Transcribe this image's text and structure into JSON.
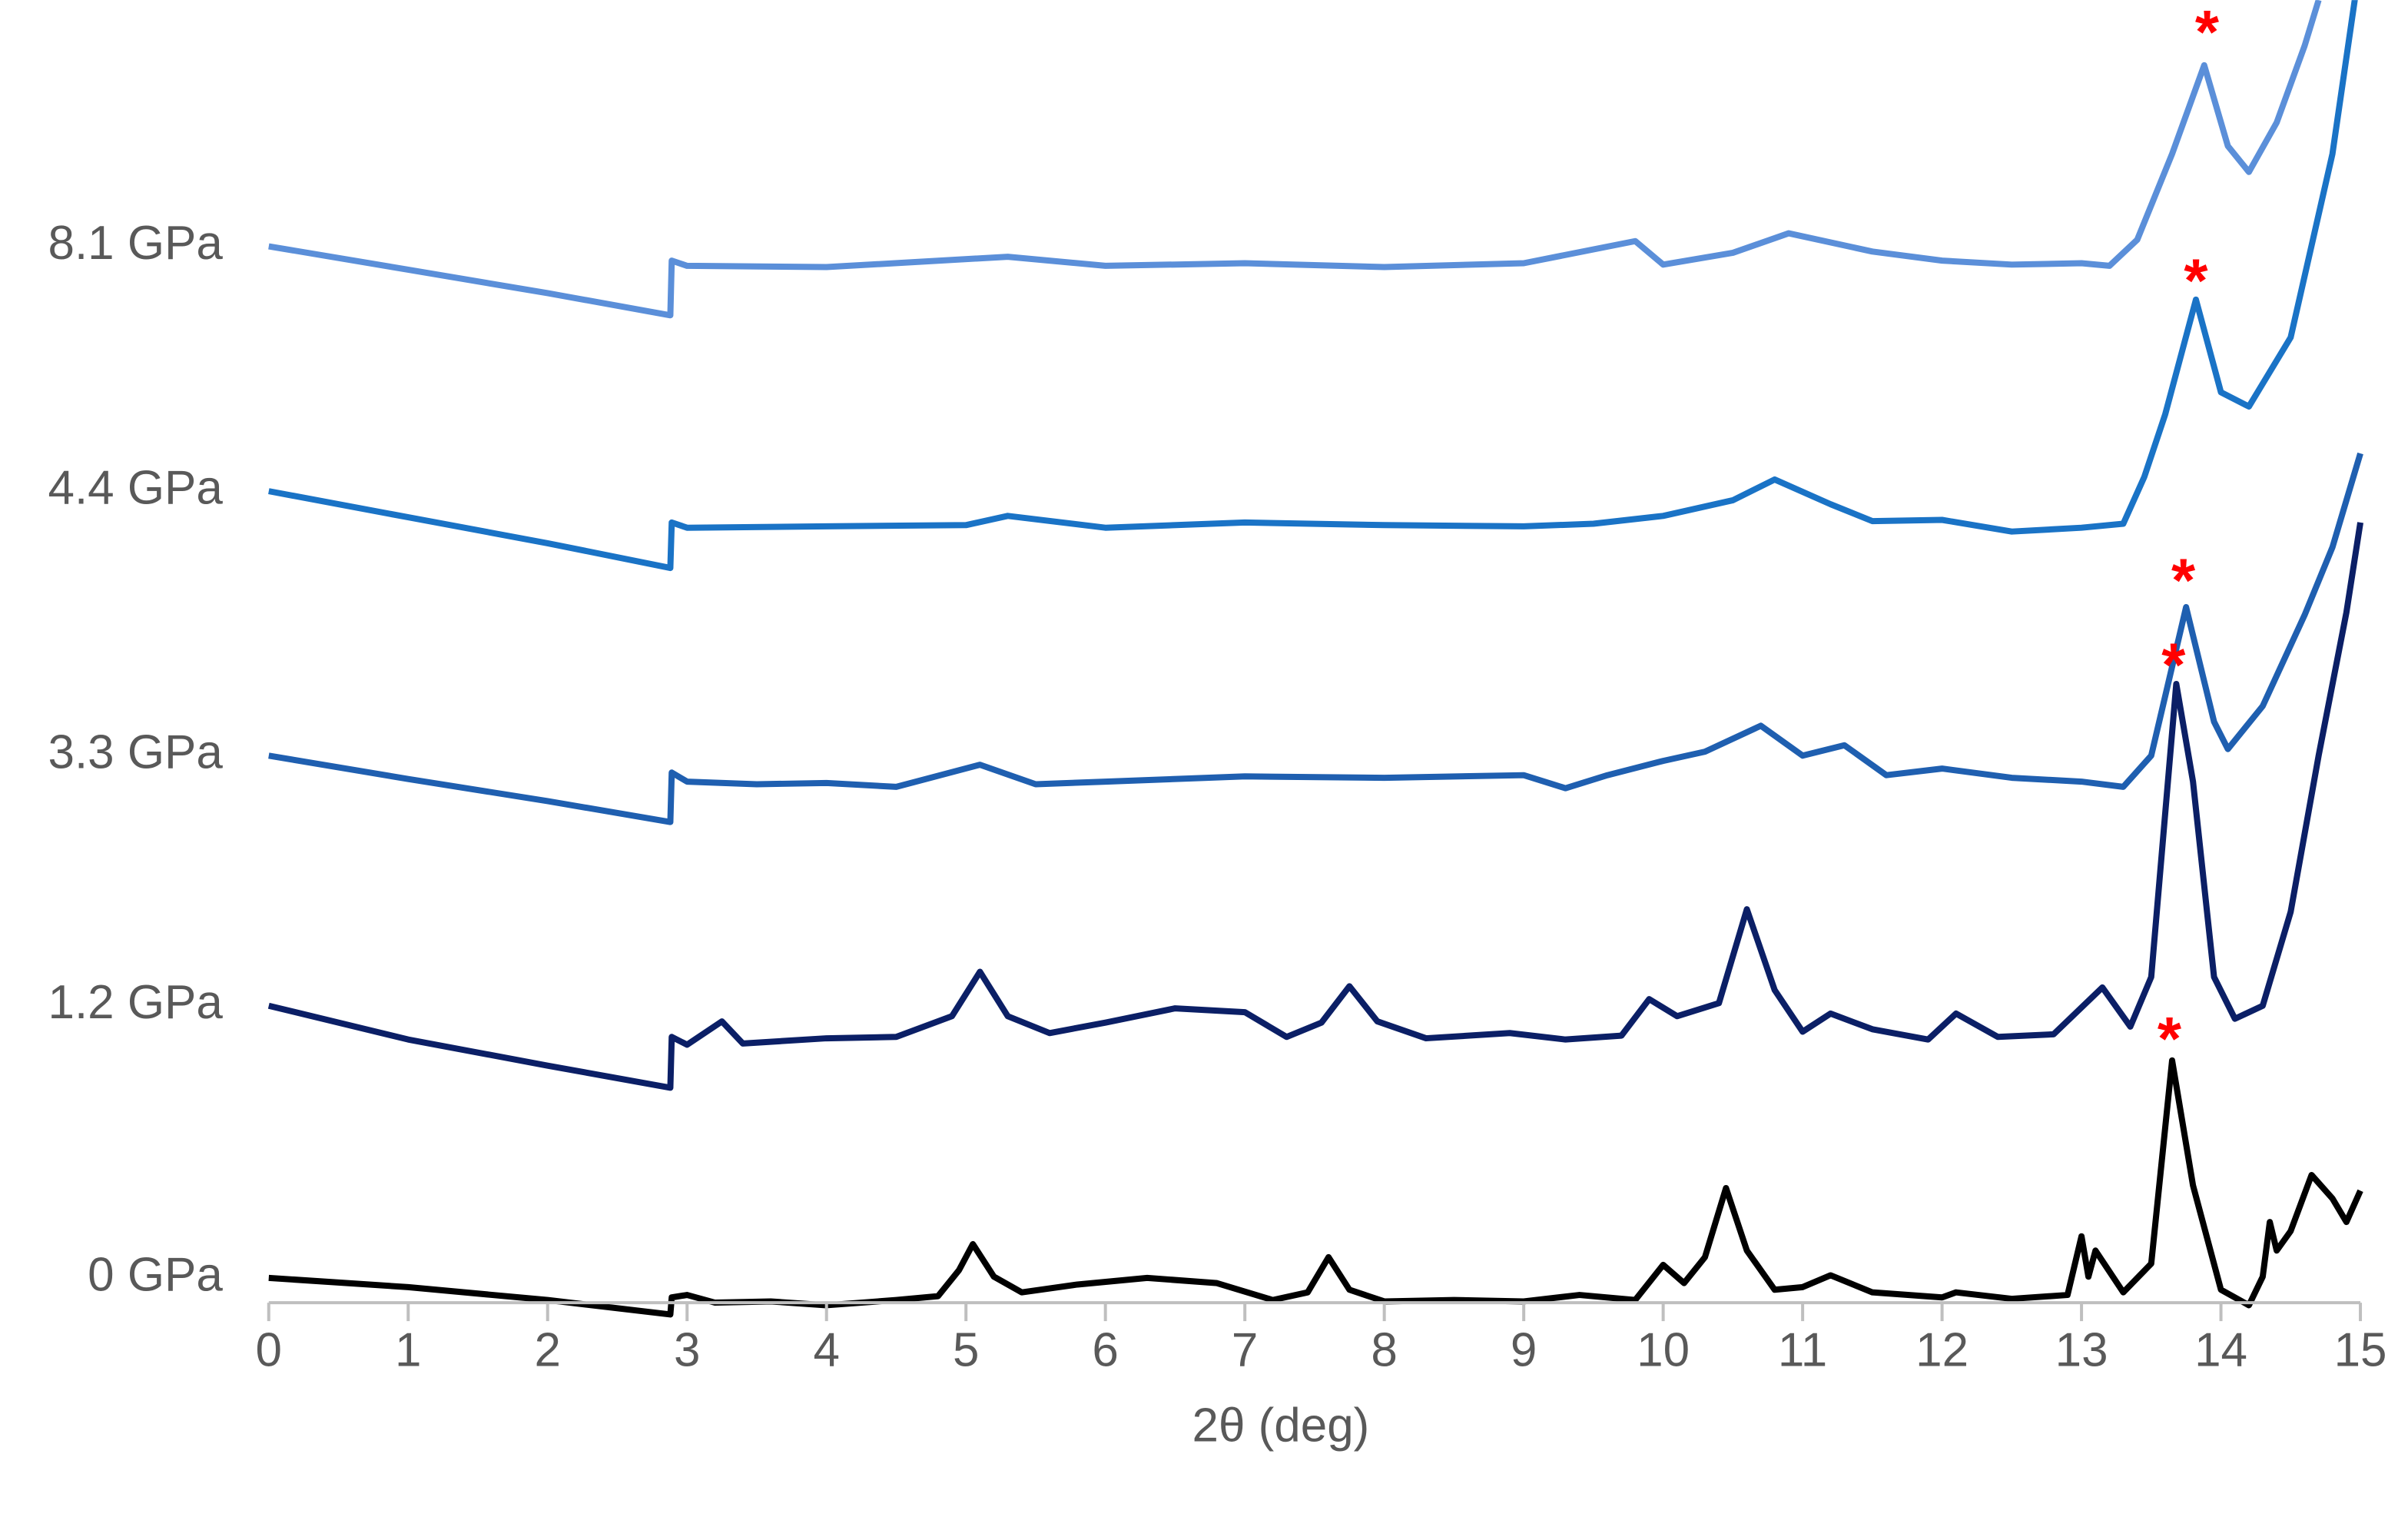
{
  "chart_data": {
    "type": "line",
    "x_label": "2θ (deg)",
    "xlim": [
      0,
      15
    ],
    "xticks": [
      0,
      1,
      2,
      3,
      4,
      5,
      6,
      7,
      8,
      9,
      10,
      11,
      12,
      13,
      14,
      15
    ],
    "ylim": [
      -2,
      100
    ],
    "grid": false,
    "series": [
      {
        "name": "0 GPa",
        "color": "#000000",
        "x": [
          0,
          1,
          2,
          2.88,
          2.89,
          3.0,
          3.2,
          3.6,
          4.0,
          4.5,
          4.8,
          4.95,
          5.05,
          5.2,
          5.4,
          5.8,
          6.3,
          6.8,
          7.2,
          7.45,
          7.6,
          7.75,
          8.0,
          8.5,
          9.0,
          9.4,
          9.8,
          10.0,
          10.15,
          10.3,
          10.45,
          10.6,
          10.8,
          11.0,
          11.2,
          11.5,
          12.0,
          12.1,
          12.5,
          12.9,
          13.0,
          13.05,
          13.1,
          13.3,
          13.5,
          13.65,
          13.8,
          14.0,
          14.2,
          14.3,
          14.35,
          14.4,
          14.5,
          14.65,
          14.8,
          14.9,
          15
        ],
        "values": [
          1.9,
          1.2,
          0.2,
          -0.9,
          0.4,
          0.6,
          0.0,
          0.1,
          -0.2,
          0.2,
          0.5,
          2.5,
          4.5,
          2.0,
          0.8,
          1.4,
          1.9,
          1.5,
          0.2,
          0.8,
          3.5,
          1.0,
          0.1,
          0.2,
          0.1,
          0.6,
          0.2,
          2.9,
          1.5,
          3.5,
          8.8,
          4.0,
          1.0,
          1.2,
          2.1,
          0.8,
          0.4,
          0.8,
          0.3,
          0.6,
          5.1,
          2.0,
          4.0,
          0.8,
          3.0,
          18.6,
          9.0,
          1.0,
          -0.2,
          2.0,
          6.2,
          4.0,
          5.5,
          9.8,
          8.0,
          6.2,
          8.6
        ]
      },
      {
        "name": "1.2 GPa",
        "color": "#0b1f66",
        "x": [
          0,
          1,
          2,
          2.88,
          2.89,
          3.0,
          3.25,
          3.4,
          4.0,
          4.5,
          4.9,
          5.1,
          5.3,
          5.6,
          6.0,
          6.5,
          7.0,
          7.3,
          7.55,
          7.75,
          7.95,
          8.3,
          8.9,
          9.3,
          9.7,
          9.9,
          10.1,
          10.4,
          10.6,
          10.8,
          11.0,
          11.2,
          11.5,
          11.9,
          12.1,
          12.4,
          12.8,
          13.15,
          13.35,
          13.5,
          13.68,
          13.8,
          13.95,
          14.1,
          14.3,
          14.5,
          14.7,
          14.9,
          15
        ],
        "values": [
          22.8,
          20.2,
          18.2,
          16.5,
          20.4,
          19.8,
          21.6,
          19.9,
          20.3,
          20.4,
          22.0,
          25.4,
          22.0,
          20.7,
          21.5,
          22.6,
          22.3,
          20.4,
          21.5,
          24.3,
          21.6,
          20.3,
          20.7,
          20.2,
          20.5,
          23.3,
          22.0,
          23.0,
          30.2,
          24.0,
          20.8,
          22.2,
          21.0,
          20.2,
          22.2,
          20.4,
          20.6,
          24.2,
          21.2,
          25.0,
          47.5,
          40.0,
          25.0,
          21.8,
          22.8,
          30.0,
          42.0,
          53.0,
          59.9
        ]
      },
      {
        "name": "3.3 GPa",
        "color": "#1f5fb0",
        "x": [
          0,
          1,
          2,
          2.88,
          2.89,
          3.0,
          3.5,
          4.0,
          4.5,
          5.1,
          5.5,
          6.0,
          7.0,
          8.0,
          9.0,
          9.3,
          9.6,
          10.0,
          10.3,
          10.7,
          11.0,
          11.3,
          11.6,
          12.0,
          12.5,
          13.0,
          13.3,
          13.5,
          13.75,
          13.95,
          14.05,
          14.3,
          14.6,
          14.8,
          15
        ],
        "values": [
          42.0,
          40.2,
          38.5,
          36.9,
          40.7,
          40.0,
          39.8,
          39.9,
          39.6,
          41.3,
          39.8,
          40.0,
          40.4,
          40.3,
          40.5,
          39.5,
          40.5,
          41.6,
          42.3,
          44.3,
          42.0,
          42.8,
          40.5,
          41.0,
          40.3,
          40.0,
          39.6,
          42.0,
          53.4,
          44.6,
          42.5,
          45.8,
          52.8,
          58.0,
          65.2
        ]
      },
      {
        "name": "4.4 GPa",
        "color": "#1a73c6",
        "x": [
          0,
          1,
          2,
          2.88,
          2.89,
          3.0,
          4.0,
          5.0,
          5.3,
          6.0,
          7.0,
          8.0,
          9.0,
          9.5,
          10.0,
          10.5,
          10.8,
          11.2,
          11.5,
          12.0,
          12.5,
          13.0,
          13.3,
          13.45,
          13.6,
          13.82,
          14.0,
          14.2,
          14.5,
          14.8,
          15
        ],
        "values": [
          62.3,
          60.3,
          58.3,
          56.4,
          59.9,
          59.5,
          59.6,
          59.7,
          60.4,
          59.5,
          59.9,
          59.7,
          59.6,
          59.8,
          60.4,
          61.6,
          63.2,
          61.3,
          60.0,
          60.1,
          59.2,
          59.5,
          59.8,
          63.4,
          68.2,
          77.0,
          69.9,
          68.8,
          74.1,
          88.2,
          103.0
        ]
      },
      {
        "name": "8.1 GPa",
        "color": "#5b8fd9",
        "x": [
          0,
          1,
          2,
          2.88,
          2.89,
          3.0,
          4.0,
          5.3,
          6.0,
          7.0,
          8.0,
          9.0,
          9.8,
          10.0,
          10.5,
          10.9,
          11.5,
          12.0,
          12.5,
          13.0,
          13.2,
          13.4,
          13.65,
          13.88,
          14.05,
          14.2,
          14.4,
          14.6,
          14.7
        ],
        "values": [
          81.1,
          79.3,
          77.5,
          75.8,
          80.0,
          79.6,
          79.5,
          80.3,
          79.6,
          79.8,
          79.5,
          79.8,
          81.5,
          79.7,
          80.6,
          82.1,
          80.7,
          80.0,
          79.7,
          79.8,
          79.6,
          81.6,
          88.2,
          95.0,
          88.8,
          86.8,
          90.6,
          96.5,
          100.0
        ]
      }
    ],
    "annotations": [
      {
        "text": "*",
        "x": 13.63,
        "y": 20.6,
        "color": "#ff0000"
      },
      {
        "text": "*",
        "x": 13.66,
        "y": 49.3,
        "color": "#ff0000"
      },
      {
        "text": "*",
        "x": 13.73,
        "y": 55.8,
        "color": "#ff0000"
      },
      {
        "text": "*",
        "x": 13.82,
        "y": 78.8,
        "color": "#ff0000"
      },
      {
        "text": "*",
        "x": 13.9,
        "y": 97.9,
        "color": "#ff0000"
      }
    ]
  }
}
